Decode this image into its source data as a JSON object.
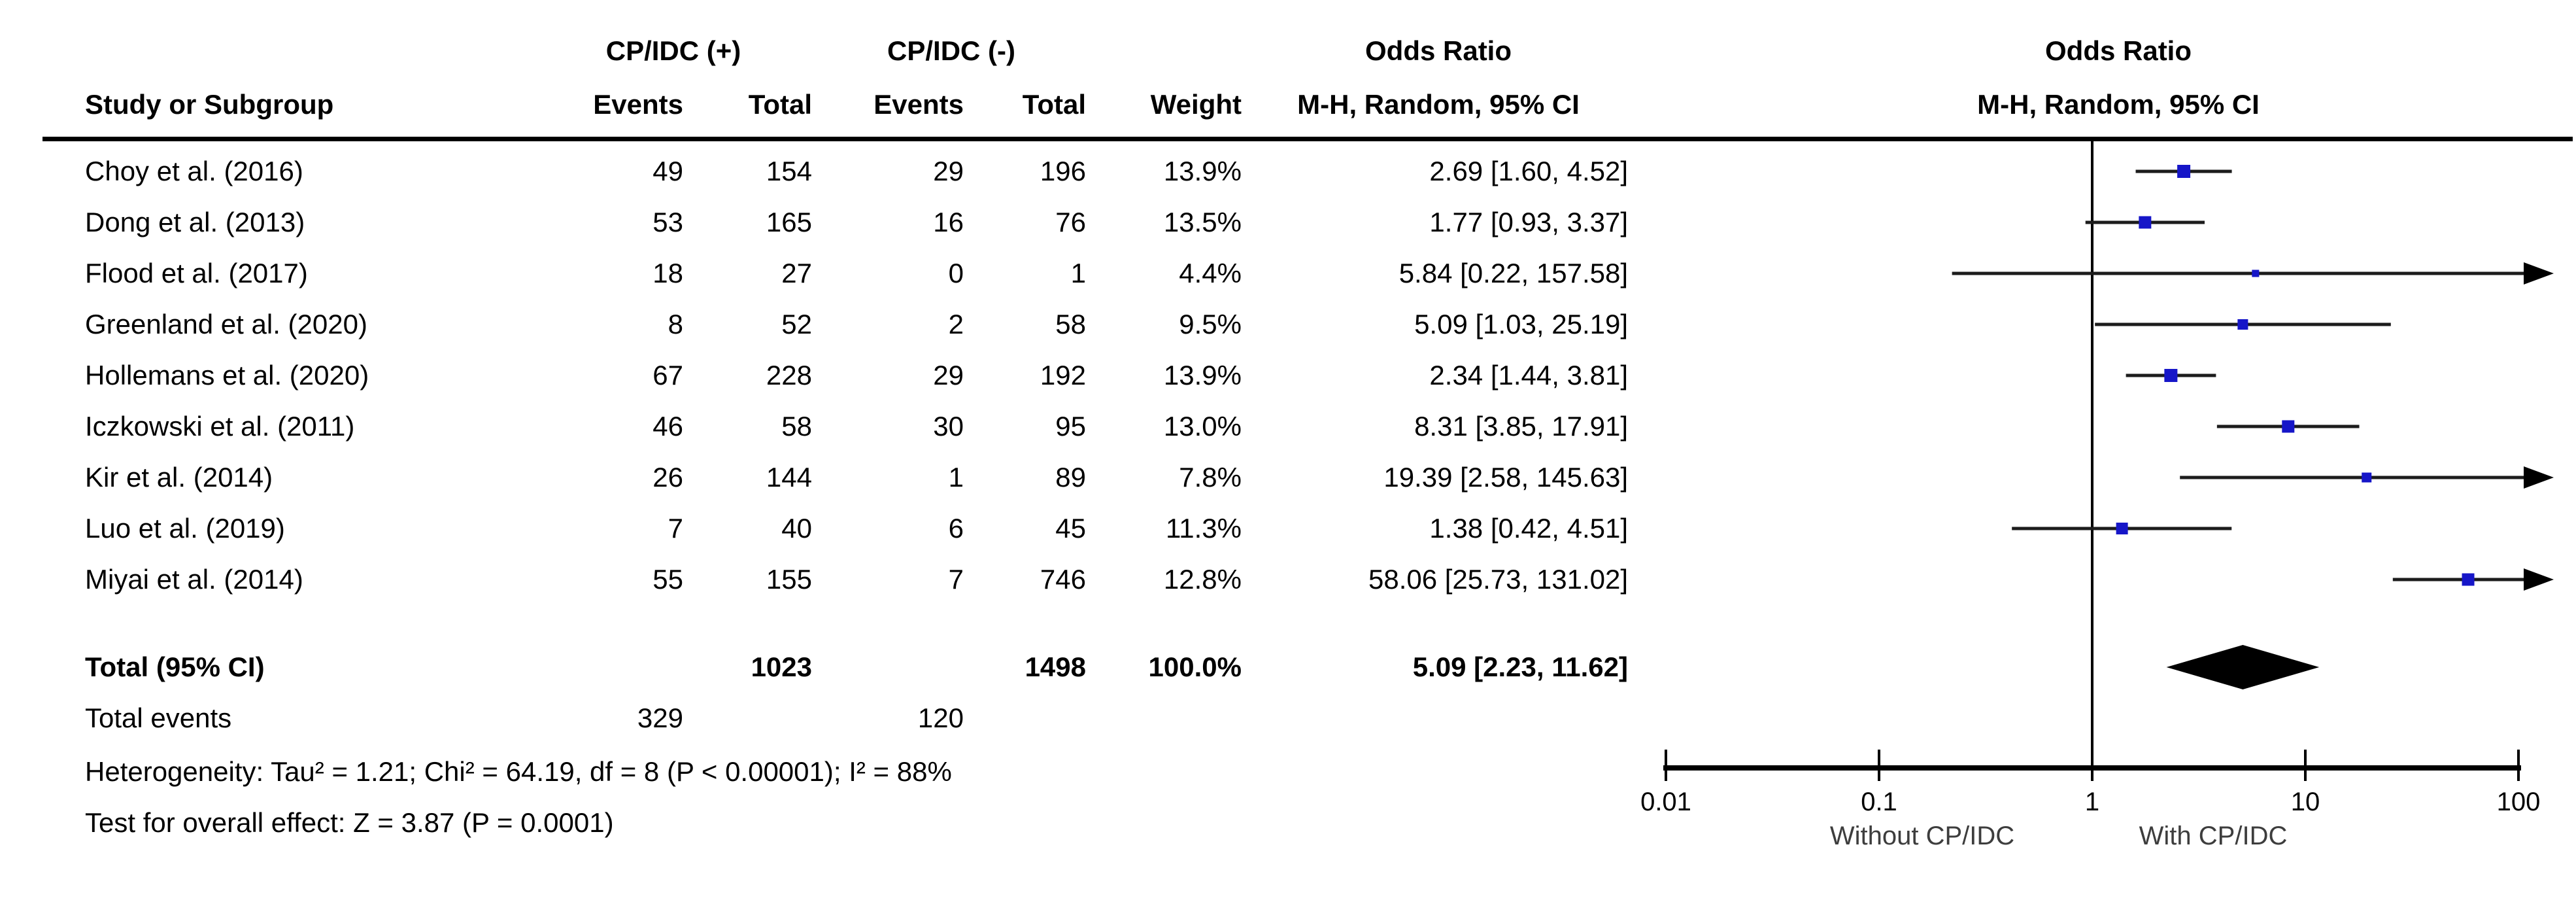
{
  "figure": {
    "headers": {
      "group1": "CP/IDC (+)",
      "group2": "CP/IDC (-)",
      "study": "Study or Subgroup",
      "cols": [
        "Events",
        "Total",
        "Events",
        "Total",
        "Weight"
      ],
      "or_line1": "Odds Ratio",
      "or_line2": "M-H, Random, 95% CI",
      "plot_line1": "Odds Ratio",
      "plot_line2": "M-H, Random, 95% CI"
    },
    "footer": {
      "heterogeneity": "Heterogeneity: Tau² = 1.21; Chi² = 64.19, df = 8 (P < 0.00001); I² = 88%",
      "overall_effect": "Test for overall effect: Z = 3.87 (P = 0.0001)"
    }
  },
  "chart_data": {
    "type": "forest",
    "effect_label": "Odds Ratio",
    "method_label": "M-H, Random, 95% CI",
    "x_scale": "log",
    "x_ticks": [
      "0.01",
      "0.1",
      "1",
      "10",
      "100"
    ],
    "x_range": [
      0.01,
      100
    ],
    "axis_label_left": "Without CP/IDC",
    "axis_label_right": "With CP/IDC",
    "marker_color": "#1616c8",
    "line_color": "#1c1c1c",
    "diamond_color": "#000000",
    "studies": [
      {
        "name": "Choy et al. (2016)",
        "events_pos": "49",
        "total_pos": "154",
        "events_neg": "29",
        "total_neg": "196",
        "weight": "13.9%",
        "weight_pct": 13.9,
        "or": 2.69,
        "ci_low": 1.6,
        "ci_high": 4.52,
        "or_text": "2.69 [1.60, 4.52]"
      },
      {
        "name": "Dong et al. (2013)",
        "events_pos": "53",
        "total_pos": "165",
        "events_neg": "16",
        "total_neg": "76",
        "weight": "13.5%",
        "weight_pct": 13.5,
        "or": 1.77,
        "ci_low": 0.93,
        "ci_high": 3.37,
        "or_text": "1.77 [0.93, 3.37]"
      },
      {
        "name": "Flood et al. (2017)",
        "events_pos": "18",
        "total_pos": "27",
        "events_neg": "0",
        "total_neg": "1",
        "weight": "4.4%",
        "weight_pct": 4.4,
        "or": 5.84,
        "ci_low": 0.22,
        "ci_high": 157.58,
        "or_text": "5.84 [0.22, 157.58]"
      },
      {
        "name": "Greenland et al. (2020)",
        "events_pos": "8",
        "total_pos": "52",
        "events_neg": "2",
        "total_neg": "58",
        "weight": "9.5%",
        "weight_pct": 9.5,
        "or": 5.09,
        "ci_low": 1.03,
        "ci_high": 25.19,
        "or_text": "5.09 [1.03, 25.19]"
      },
      {
        "name": "Hollemans et al. (2020)",
        "events_pos": "67",
        "total_pos": "228",
        "events_neg": "29",
        "total_neg": "192",
        "weight": "13.9%",
        "weight_pct": 13.9,
        "or": 2.34,
        "ci_low": 1.44,
        "ci_high": 3.81,
        "or_text": "2.34 [1.44, 3.81]"
      },
      {
        "name": "Iczkowski et al. (2011)",
        "events_pos": "46",
        "total_pos": "58",
        "events_neg": "30",
        "total_neg": "95",
        "weight": "13.0%",
        "weight_pct": 13.0,
        "or": 8.31,
        "ci_low": 3.85,
        "ci_high": 17.91,
        "or_text": "8.31 [3.85, 17.91]"
      },
      {
        "name": "Kir et al. (2014)",
        "events_pos": "26",
        "total_pos": "144",
        "events_neg": "1",
        "total_neg": "89",
        "weight": "7.8%",
        "weight_pct": 7.8,
        "or": 19.39,
        "ci_low": 2.58,
        "ci_high": 145.63,
        "or_text": "19.39 [2.58, 145.63]"
      },
      {
        "name": "Luo et al. (2019)",
        "events_pos": "7",
        "total_pos": "40",
        "events_neg": "6",
        "total_neg": "45",
        "weight": "11.3%",
        "weight_pct": 11.3,
        "or": 1.38,
        "ci_low": 0.42,
        "ci_high": 4.51,
        "or_text": "1.38 [0.42, 4.51]"
      },
      {
        "name": "Miyai et al. (2014)",
        "events_pos": "55",
        "total_pos": "155",
        "events_neg": "7",
        "total_neg": "746",
        "weight": "12.8%",
        "weight_pct": 12.8,
        "or": 58.06,
        "ci_low": 25.73,
        "ci_high": 131.02,
        "or_text": "58.06 [25.73, 131.02]"
      }
    ],
    "total": {
      "name": "Total (95% CI)",
      "total_pos": "1023",
      "total_neg": "1498",
      "weight": "100.0%",
      "or": 5.09,
      "ci_low": 2.23,
      "ci_high": 11.62,
      "or_text": "5.09 [2.23, 11.62]"
    },
    "total_events": {
      "name": "Total events",
      "pos": "329",
      "neg": "120"
    },
    "heterogeneity": {
      "tau2": 1.21,
      "chi2": 64.19,
      "df": 8,
      "p": "< 0.00001",
      "i2": "88%"
    },
    "overall_effect": {
      "z": 3.87,
      "p": "0.0001"
    }
  }
}
